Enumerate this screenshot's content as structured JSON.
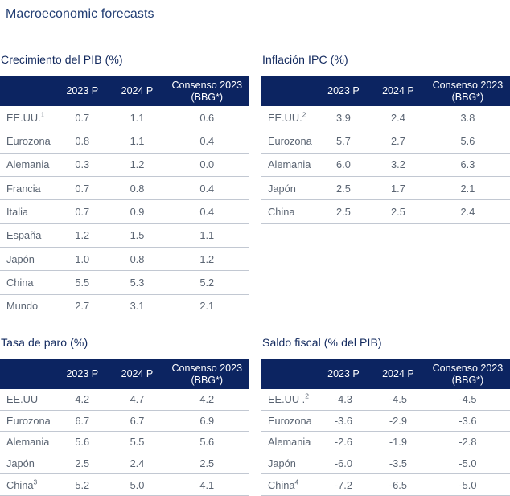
{
  "page": {
    "title": "Macroeconomic forecasts"
  },
  "colors": {
    "header_bg": "#0c2461",
    "header_text": "#ffffff",
    "table_title_text": "#12295e",
    "page_title_text": "#233f74",
    "body_text": "#5a6472",
    "row_border": "#c2c8d2"
  },
  "tables": [
    {
      "id": "gdp-growth",
      "title": "Crecimiento del PIB (%)",
      "headers": [
        "2023 P",
        "2024 P",
        "Consenso 2023 (BBG*)"
      ],
      "rows": [
        {
          "label": "EE.UU.",
          "sup": "1",
          "values": [
            "0.7",
            "1.1",
            "0.6"
          ]
        },
        {
          "label": "Eurozona",
          "sup": "",
          "values": [
            "0.8",
            "1.1",
            "0.4"
          ]
        },
        {
          "label": "Alemania",
          "sup": "",
          "values": [
            "0.3",
            "1.2",
            "0.0"
          ]
        },
        {
          "label": "Francia",
          "sup": "",
          "values": [
            "0.7",
            "0.8",
            "0.4"
          ]
        },
        {
          "label": "Italia",
          "sup": "",
          "values": [
            "0.7",
            "0.9",
            "0.4"
          ]
        },
        {
          "label": "España",
          "sup": "",
          "values": [
            "1.2",
            "1.5",
            "1.1"
          ]
        },
        {
          "label": "Japón",
          "sup": "",
          "values": [
            "1.0",
            "0.8",
            "1.2"
          ]
        },
        {
          "label": "China",
          "sup": "",
          "values": [
            "5.5",
            "5.3",
            "5.2"
          ]
        },
        {
          "label": "Mundo",
          "sup": "",
          "values": [
            "2.7",
            "3.1",
            "2.1"
          ]
        }
      ]
    },
    {
      "id": "cpi-inflation",
      "title": "Inflación IPC (%)",
      "headers": [
        "2023 P",
        "2024 P",
        "Consenso 2023 (BBG*)"
      ],
      "rows": [
        {
          "label": "EE.UU.",
          "sup": "2",
          "values": [
            "3.9",
            "2.4",
            "3.8"
          ]
        },
        {
          "label": "Eurozona",
          "sup": "",
          "values": [
            "5.7",
            "2.7",
            "5.6"
          ]
        },
        {
          "label": "Alemania",
          "sup": "",
          "values": [
            "6.0",
            "3.2",
            "6.3"
          ]
        },
        {
          "label": "Japón",
          "sup": "",
          "values": [
            "2.5",
            "1.7",
            "2.1"
          ]
        },
        {
          "label": "China",
          "sup": "",
          "values": [
            "2.5",
            "2.5",
            "2.4"
          ]
        }
      ]
    },
    {
      "id": "unemployment-rate",
      "title": "Tasa de paro (%)",
      "headers": [
        "2023 P",
        "2024 P",
        "Consenso 2023 (BBG*)"
      ],
      "rows": [
        {
          "label": "EE.UU",
          "sup": "",
          "values": [
            "4.2",
            "4.7",
            "4.2"
          ]
        },
        {
          "label": "Eurozona",
          "sup": "",
          "values": [
            "6.7",
            "6.7",
            "6.9"
          ]
        },
        {
          "label": "Alemania",
          "sup": "",
          "values": [
            "5.6",
            "5.5",
            "5.6"
          ]
        },
        {
          "label": "Japón",
          "sup": "",
          "values": [
            "2.5",
            "2.4",
            "2.5"
          ]
        },
        {
          "label": "China",
          "sup": "3",
          "values": [
            "5.2",
            "5.0",
            "4.1"
          ]
        }
      ]
    },
    {
      "id": "fiscal-balance",
      "title": "Saldo fiscal (% del PIB)",
      "headers": [
        "2023 P",
        "2024 P",
        "Consenso 2023 (BBG*)"
      ],
      "rows": [
        {
          "label": "EE.UU .",
          "sup": "2",
          "values": [
            "-4.3",
            "-4.5",
            "-4.5"
          ]
        },
        {
          "label": "Eurozona",
          "sup": "",
          "values": [
            "-3.6",
            "-2.9",
            "-3.6"
          ]
        },
        {
          "label": "Alemania",
          "sup": "",
          "values": [
            "-2.6",
            "-1.9",
            "-2.8"
          ]
        },
        {
          "label": "Japón",
          "sup": "",
          "values": [
            "-6.0",
            "-3.5",
            "-5.0"
          ]
        },
        {
          "label": "China",
          "sup": "4",
          "values": [
            "-7.2",
            "-6.5",
            "-5.0"
          ]
        }
      ]
    }
  ]
}
